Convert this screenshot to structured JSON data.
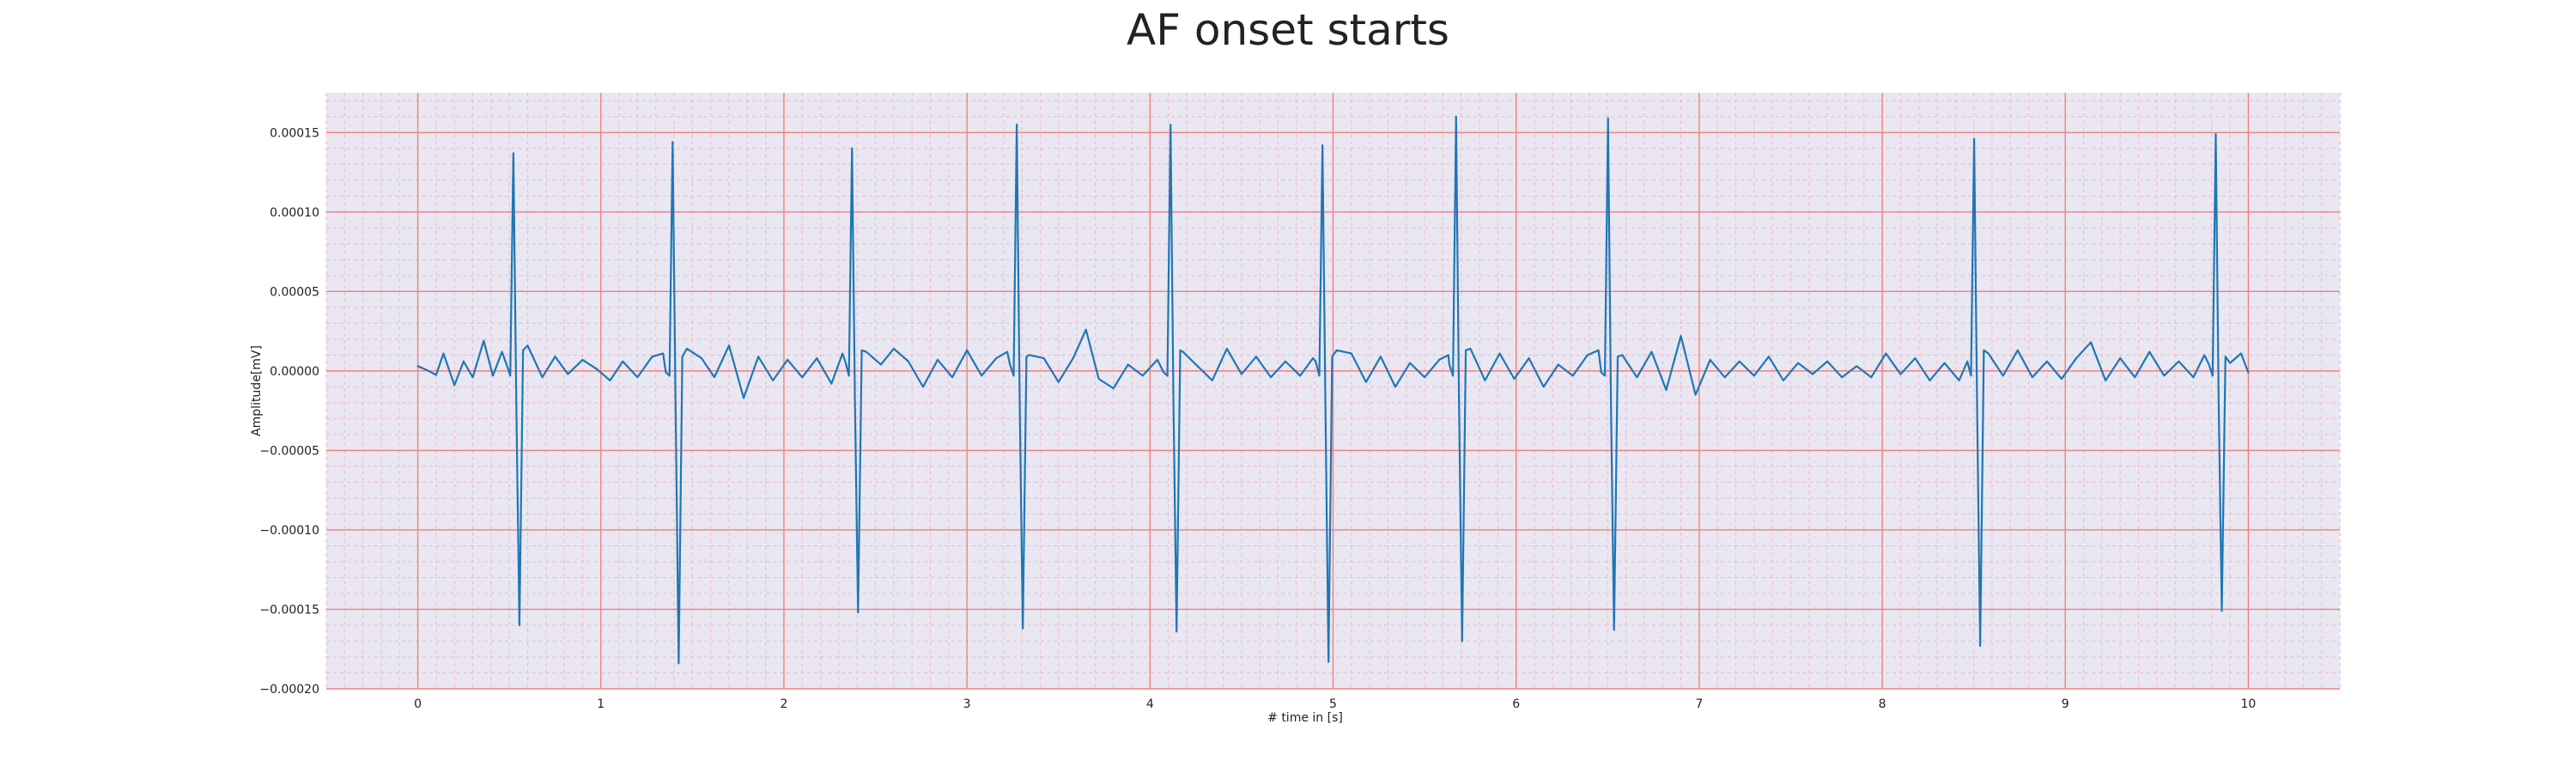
{
  "chart_data": {
    "type": "line",
    "title": "AF onset starts",
    "xlabel": "# time in [s]",
    "ylabel": "Amplitude[mV]",
    "xlim": [
      -0.5,
      10.5
    ],
    "ylim": [
      -0.0002,
      0.000175
    ],
    "x_ticks": [
      0,
      1,
      2,
      3,
      4,
      5,
      6,
      7,
      8,
      9,
      10
    ],
    "y_ticks": [
      0.00015,
      0.0001,
      5e-05,
      0,
      -5e-05,
      -0.0001,
      -0.00015,
      -0.0002
    ],
    "x_tick_labels": [
      "0",
      "1",
      "2",
      "3",
      "4",
      "5",
      "6",
      "7",
      "8",
      "9",
      "10"
    ],
    "y_tick_labels": [
      "0.00015",
      "0.00010",
      "0.00005",
      "0.00000",
      "−0.00005",
      "−0.00010",
      "−0.00015",
      "−0.00020"
    ],
    "grid": true,
    "minor_grid": true,
    "background_color": "#e9e7f1",
    "major_grid_color": "#f08080",
    "minor_grid_color": "#f4b6c8",
    "series": [
      {
        "color": "#1f77b4",
        "beats": [
          {
            "t": 0.53,
            "peak": 0.000137,
            "trough": -0.00016
          },
          {
            "t": 1.4,
            "peak": 0.000144,
            "trough": -0.000184
          },
          {
            "t": 2.38,
            "peak": 0.00014,
            "trough": -0.000152
          },
          {
            "t": 3.28,
            "peak": 0.000155,
            "trough": -0.000162
          },
          {
            "t": 4.12,
            "peak": 0.000155,
            "trough": -0.000164
          },
          {
            "t": 4.95,
            "peak": 0.000142,
            "trough": -0.000183
          },
          {
            "t": 5.68,
            "peak": 0.00016,
            "trough": -0.00017
          },
          {
            "t": 6.51,
            "peak": 0.000159,
            "trough": -0.000163
          },
          {
            "t": 8.51,
            "peak": 0.000146,
            "trough": -0.000173
          },
          {
            "t": 9.83,
            "peak": 0.000149,
            "trough": -0.000151
          }
        ],
        "baseline_points": [
          [
            0.0,
            3e-06
          ],
          [
            0.05,
            5e-07
          ],
          [
            0.1,
            -2.5e-06
          ],
          [
            0.14,
            1.1e-05
          ],
          [
            0.2,
            -9e-06
          ],
          [
            0.25,
            6e-06
          ],
          [
            0.3,
            -4e-06
          ],
          [
            0.36,
            1.9e-05
          ],
          [
            0.41,
            -3e-06
          ],
          [
            0.46,
            1.2e-05
          ],
          [
            0.6,
            1.6e-05
          ],
          [
            0.68,
            -4e-06
          ],
          [
            0.75,
            9e-06
          ],
          [
            0.82,
            -2e-06
          ],
          [
            0.9,
            7e-06
          ],
          [
            0.98,
            1e-06
          ],
          [
            1.05,
            -6e-06
          ],
          [
            1.12,
            6e-06
          ],
          [
            1.2,
            -4e-06
          ],
          [
            1.28,
            9e-06
          ],
          [
            1.34,
            1.1e-05
          ],
          [
            1.47,
            1.4e-05
          ],
          [
            1.55,
            8e-06
          ],
          [
            1.62,
            -4e-06
          ],
          [
            1.7,
            1.6e-05
          ],
          [
            1.78,
            -1.7e-05
          ],
          [
            1.86,
            9e-06
          ],
          [
            1.94,
            -6e-06
          ],
          [
            2.02,
            7e-06
          ],
          [
            2.1,
            -4e-06
          ],
          [
            2.18,
            8e-06
          ],
          [
            2.26,
            -8e-06
          ],
          [
            2.32,
            1.1e-05
          ],
          [
            2.45,
            1.2e-05
          ],
          [
            2.53,
            4e-06
          ],
          [
            2.6,
            1.4e-05
          ],
          [
            2.68,
            6e-06
          ],
          [
            2.76,
            -1e-05
          ],
          [
            2.84,
            7e-06
          ],
          [
            2.92,
            -4e-06
          ],
          [
            3.0,
            1.3e-05
          ],
          [
            3.08,
            -3e-06
          ],
          [
            3.16,
            8e-06
          ],
          [
            3.22,
            1.2e-05
          ],
          [
            3.34,
            1e-05
          ],
          [
            3.42,
            8e-06
          ],
          [
            3.5,
            -7e-06
          ],
          [
            3.58,
            8e-06
          ],
          [
            3.65,
            2.6e-05
          ],
          [
            3.72,
            -5e-06
          ],
          [
            3.8,
            -1.1e-05
          ],
          [
            3.88,
            4e-06
          ],
          [
            3.96,
            -3e-06
          ],
          [
            4.04,
            7e-06
          ],
          [
            4.18,
            1.2e-05
          ],
          [
            4.26,
            3e-06
          ],
          [
            4.34,
            -6e-06
          ],
          [
            4.42,
            1.4e-05
          ],
          [
            4.5,
            -2e-06
          ],
          [
            4.58,
            9e-06
          ],
          [
            4.66,
            -4e-06
          ],
          [
            4.74,
            6e-06
          ],
          [
            4.82,
            -3e-06
          ],
          [
            4.89,
            8e-06
          ],
          [
            5.02,
            1.3e-05
          ],
          [
            5.1,
            1.1e-05
          ],
          [
            5.18,
            -7e-06
          ],
          [
            5.26,
            9e-06
          ],
          [
            5.34,
            -1e-05
          ],
          [
            5.42,
            5e-06
          ],
          [
            5.5,
            -4e-06
          ],
          [
            5.58,
            7e-06
          ],
          [
            5.63,
            1e-05
          ],
          [
            5.75,
            1.4e-05
          ],
          [
            5.83,
            -6e-06
          ],
          [
            5.91,
            1.1e-05
          ],
          [
            5.99,
            -5e-06
          ],
          [
            6.07,
            8e-06
          ],
          [
            6.15,
            -1e-05
          ],
          [
            6.23,
            4e-06
          ],
          [
            6.31,
            -3e-06
          ],
          [
            6.39,
            1e-05
          ],
          [
            6.45,
            1.3e-05
          ],
          [
            6.58,
            1e-05
          ],
          [
            6.66,
            -4e-06
          ],
          [
            6.74,
            1.2e-05
          ],
          [
            6.82,
            -1.2e-05
          ],
          [
            6.9,
            2.2e-05
          ],
          [
            6.98,
            -1.5e-05
          ],
          [
            7.06,
            7e-06
          ],
          [
            7.14,
            -4e-06
          ],
          [
            7.22,
            6e-06
          ],
          [
            7.3,
            -3e-06
          ],
          [
            7.38,
            9e-06
          ],
          [
            7.46,
            -6e-06
          ],
          [
            7.54,
            5e-06
          ],
          [
            7.62,
            -2e-06
          ],
          [
            7.7,
            6e-06
          ],
          [
            7.78,
            -4e-06
          ],
          [
            7.86,
            3e-06
          ],
          [
            7.94,
            -4e-06
          ],
          [
            8.02,
            1.1e-05
          ],
          [
            8.1,
            -2e-06
          ],
          [
            8.18,
            8e-06
          ],
          [
            8.26,
            -6e-06
          ],
          [
            8.34,
            5e-06
          ],
          [
            8.42,
            -6e-06
          ],
          [
            8.47,
            9e-06
          ],
          [
            8.58,
            1.1e-05
          ],
          [
            8.66,
            -3e-06
          ],
          [
            8.74,
            1.3e-05
          ],
          [
            8.82,
            -4e-06
          ],
          [
            8.9,
            6e-06
          ],
          [
            8.98,
            -5e-06
          ],
          [
            9.06,
            8e-06
          ],
          [
            9.14,
            1.8e-05
          ],
          [
            9.22,
            -6e-06
          ],
          [
            9.3,
            8e-06
          ],
          [
            9.38,
            -4e-06
          ],
          [
            9.46,
            1.2e-05
          ],
          [
            9.54,
            -3e-06
          ],
          [
            9.62,
            6e-06
          ],
          [
            9.7,
            -4e-06
          ],
          [
            9.76,
            1e-05
          ],
          [
            9.9,
            5e-06
          ],
          [
            9.96,
            1.1e-05
          ],
          [
            10.0,
            -1e-06
          ]
        ]
      }
    ]
  }
}
